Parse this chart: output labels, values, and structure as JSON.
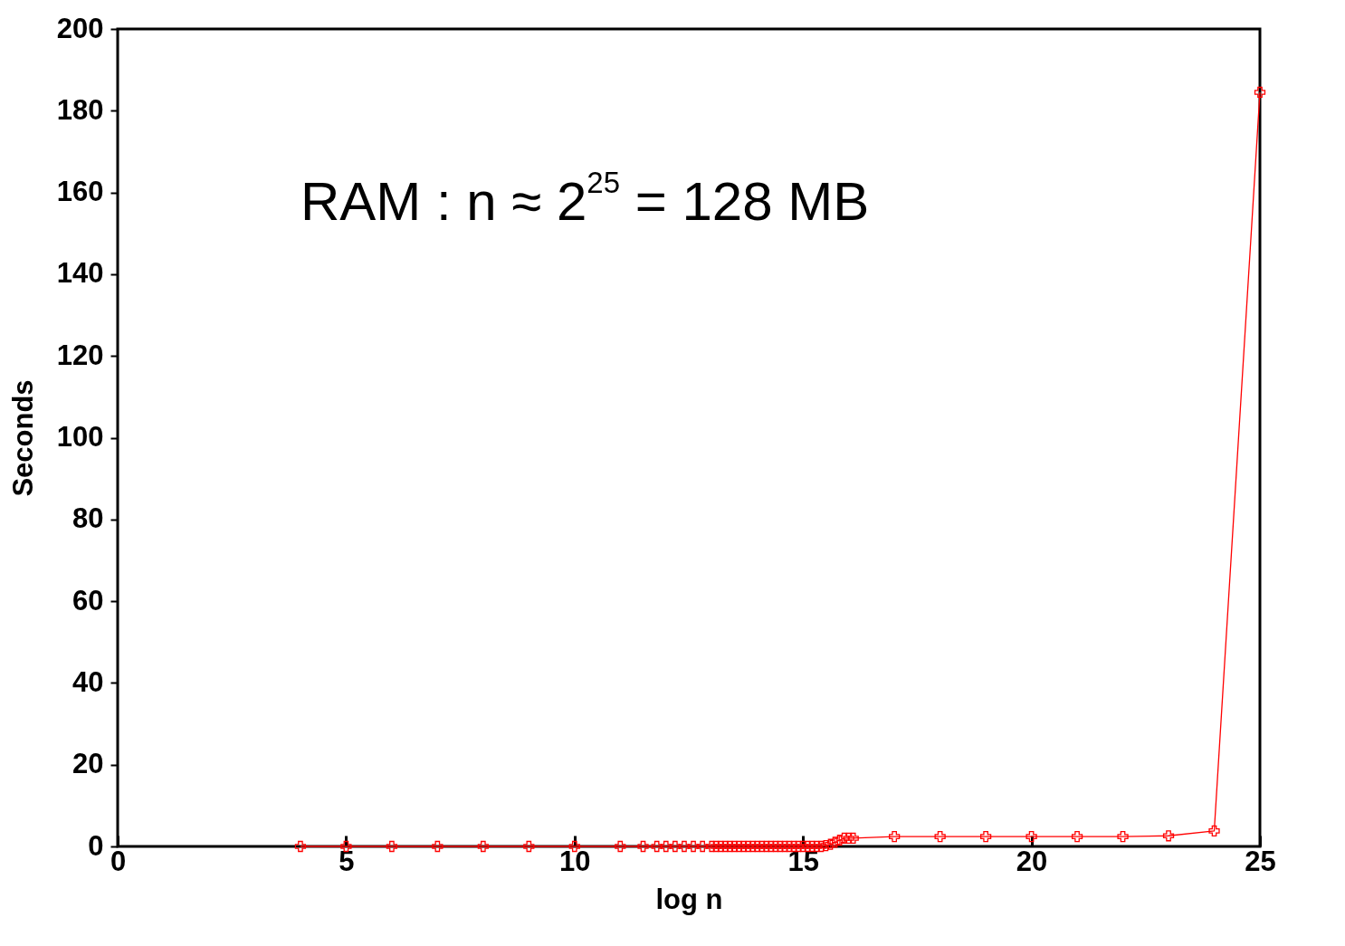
{
  "chart_data": {
    "type": "line",
    "xlabel": "log n",
    "ylabel": "Seconds",
    "annotations": [
      "RAM : n ≈  2$^{25}$ = 128 MB"
    ],
    "xlim": [
      0,
      25
    ],
    "xticks": [
      0,
      5,
      10,
      15,
      20,
      25
    ],
    "ylim": [
      0,
      200
    ],
    "yticks": [
      0,
      20,
      40,
      60,
      80,
      100,
      120,
      140,
      160,
      180,
      200
    ],
    "grid": false,
    "marker": "cross",
    "line_style": "solid",
    "series": [
      {
        "color": "#ff0000",
        "x": [
          4,
          5,
          6,
          7,
          8,
          9,
          10,
          11,
          11.5,
          11.8,
          12,
          12.2,
          12.4,
          12.6,
          12.8,
          13,
          13.1,
          13.2,
          13.3,
          13.4,
          13.5,
          13.6,
          13.7,
          13.8,
          13.9,
          14,
          14.1,
          14.2,
          14.3,
          14.4,
          14.5,
          14.6,
          14.7,
          14.8,
          14.9,
          15,
          15.1,
          15.2,
          15.3,
          15.4,
          15.5,
          15.6,
          15.7,
          15.8,
          15.9,
          16,
          16.1,
          17,
          18,
          19,
          20,
          21,
          22,
          23,
          24,
          25
        ],
        "values": [
          0,
          0,
          0,
          0,
          0,
          0,
          0,
          0,
          0,
          0,
          0,
          0,
          0,
          0,
          0,
          0,
          0,
          0,
          0,
          0,
          0,
          0,
          0,
          0,
          0,
          0,
          0,
          0,
          0,
          0,
          0,
          0,
          0,
          0,
          0,
          0,
          0,
          0,
          0,
          0,
          0.2,
          0.5,
          1,
          1.5,
          2,
          2,
          2,
          2.4,
          2.4,
          2.4,
          2.4,
          2.4,
          2.4,
          2.6,
          3.8,
          184.5
        ]
      }
    ]
  }
}
